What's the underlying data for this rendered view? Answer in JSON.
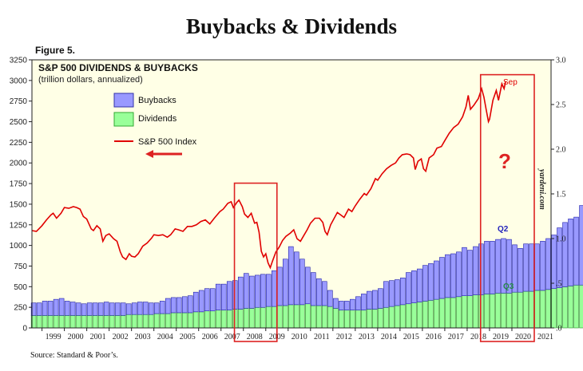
{
  "header": {
    "title": "Buybacks & Dividends",
    "figure_label": "Figure 5.",
    "source": "Source: Standard & Poor’s."
  },
  "colors": {
    "background": "#FFFFE6",
    "buybacks": "#9999FF",
    "dividends": "#99FF99",
    "index": "#E00000",
    "highlight_box": "#DD2222",
    "q2_label": "#2222BB",
    "q3_label": "#228844"
  },
  "chart_data": {
    "type": "bar",
    "title": "S&P 500 DIVIDENDS & BUYBACKS",
    "subtitle": "(trillion dollars, annualized)",
    "stacked": true,
    "x_range": [
      1998.55,
      2021.75
    ],
    "left_axis": {
      "range": [
        0,
        3250
      ],
      "ticks": [
        0,
        250,
        500,
        750,
        1000,
        1250,
        1500,
        1750,
        2000,
        2250,
        2500,
        2750,
        3000,
        3250
      ]
    },
    "right_axis": {
      "range": [
        0,
        3.0
      ],
      "ticks": [
        0,
        0.5,
        1.0,
        1.5,
        2.0,
        2.5,
        3.0
      ],
      "tick_labels": [
        ".0",
        ".5",
        "1.0",
        "1.5",
        "2.0",
        "2.5",
        "3.0"
      ]
    },
    "x_tick_labels": [
      "1999",
      "2000",
      "2001",
      "2002",
      "2003",
      "2004",
      "2005",
      "2006",
      "2007",
      "2008",
      "2009",
      "2010",
      "2011",
      "2012",
      "2013",
      "2014",
      "2015",
      "2016",
      "2017",
      "2018",
      "2019",
      "2020",
      "2021"
    ],
    "bar_start": 1998.625,
    "bar_step": 0.25,
    "series": [
      {
        "name": "Dividends",
        "axis": "right",
        "values": [
          0.14,
          0.14,
          0.14,
          0.14,
          0.14,
          0.14,
          0.14,
          0.14,
          0.14,
          0.14,
          0.14,
          0.14,
          0.14,
          0.14,
          0.14,
          0.14,
          0.14,
          0.15,
          0.15,
          0.15,
          0.15,
          0.15,
          0.16,
          0.16,
          0.16,
          0.17,
          0.17,
          0.17,
          0.17,
          0.18,
          0.18,
          0.19,
          0.19,
          0.2,
          0.2,
          0.2,
          0.21,
          0.21,
          0.22,
          0.22,
          0.23,
          0.23,
          0.24,
          0.24,
          0.25,
          0.25,
          0.26,
          0.26,
          0.26,
          0.27,
          0.25,
          0.25,
          0.25,
          0.24,
          0.22,
          0.2,
          0.2,
          0.2,
          0.2,
          0.2,
          0.21,
          0.21,
          0.22,
          0.23,
          0.24,
          0.25,
          0.26,
          0.27,
          0.28,
          0.29,
          0.3,
          0.31,
          0.32,
          0.33,
          0.34,
          0.34,
          0.35,
          0.36,
          0.36,
          0.37,
          0.37,
          0.38,
          0.38,
          0.39,
          0.39,
          0.39,
          0.4,
          0.4,
          0.41,
          0.41,
          0.42,
          0.42,
          0.43,
          0.44,
          0.45,
          0.46,
          0.47,
          0.48,
          0.48,
          0.48,
          0.49,
          0.5
        ]
      },
      {
        "name": "Buybacks",
        "axis": "right",
        "values": [
          0.14,
          0.14,
          0.16,
          0.16,
          0.18,
          0.19,
          0.16,
          0.15,
          0.14,
          0.13,
          0.14,
          0.14,
          0.14,
          0.15,
          0.14,
          0.14,
          0.14,
          0.12,
          0.13,
          0.14,
          0.14,
          0.13,
          0.12,
          0.14,
          0.17,
          0.17,
          0.17,
          0.18,
          0.19,
          0.22,
          0.24,
          0.25,
          0.25,
          0.29,
          0.29,
          0.32,
          0.32,
          0.36,
          0.39,
          0.36,
          0.36,
          0.37,
          0.36,
          0.4,
          0.43,
          0.52,
          0.65,
          0.59,
          0.51,
          0.41,
          0.37,
          0.3,
          0.27,
          0.18,
          0.11,
          0.1,
          0.1,
          0.12,
          0.15,
          0.18,
          0.2,
          0.21,
          0.22,
          0.29,
          0.29,
          0.29,
          0.3,
          0.35,
          0.36,
          0.37,
          0.4,
          0.41,
          0.43,
          0.46,
          0.48,
          0.49,
          0.5,
          0.54,
          0.51,
          0.54,
          0.57,
          0.59,
          0.59,
          0.6,
          0.61,
          0.6,
          0.53,
          0.49,
          0.53,
          0.53,
          0.52,
          0.55,
          0.57,
          0.6,
          0.67,
          0.72,
          0.75,
          0.76,
          0.89,
          0.81,
          0.64,
          0.73
        ]
      },
      {
        "name": "S&P 500 Index",
        "type": "line",
        "axis": "left",
        "points": [
          [
            1998.55,
            1180
          ],
          [
            1998.75,
            1170
          ],
          [
            1999.0,
            1240
          ],
          [
            1999.2,
            1310
          ],
          [
            1999.4,
            1370
          ],
          [
            1999.5,
            1390
          ],
          [
            1999.65,
            1330
          ],
          [
            1999.85,
            1390
          ],
          [
            2000.0,
            1460
          ],
          [
            2000.2,
            1450
          ],
          [
            2000.4,
            1470
          ],
          [
            2000.55,
            1460
          ],
          [
            2000.7,
            1440
          ],
          [
            2000.85,
            1350
          ],
          [
            2001.0,
            1320
          ],
          [
            2001.2,
            1200
          ],
          [
            2001.3,
            1180
          ],
          [
            2001.45,
            1240
          ],
          [
            2001.6,
            1200
          ],
          [
            2001.72,
            1050
          ],
          [
            2001.85,
            1120
          ],
          [
            2002.0,
            1140
          ],
          [
            2002.2,
            1080
          ],
          [
            2002.35,
            1050
          ],
          [
            2002.5,
            920
          ],
          [
            2002.6,
            860
          ],
          [
            2002.75,
            830
          ],
          [
            2002.9,
            900
          ],
          [
            2003.0,
            870
          ],
          [
            2003.15,
            860
          ],
          [
            2003.3,
            900
          ],
          [
            2003.5,
            990
          ],
          [
            2003.7,
            1030
          ],
          [
            2003.9,
            1090
          ],
          [
            2004.0,
            1130
          ],
          [
            2004.2,
            1120
          ],
          [
            2004.4,
            1130
          ],
          [
            2004.6,
            1100
          ],
          [
            2004.75,
            1130
          ],
          [
            2004.95,
            1200
          ],
          [
            2005.1,
            1190
          ],
          [
            2005.3,
            1170
          ],
          [
            2005.5,
            1230
          ],
          [
            2005.7,
            1230
          ],
          [
            2005.9,
            1250
          ],
          [
            2006.1,
            1290
          ],
          [
            2006.3,
            1310
          ],
          [
            2006.5,
            1260
          ],
          [
            2006.7,
            1330
          ],
          [
            2006.95,
            1410
          ],
          [
            2007.1,
            1440
          ],
          [
            2007.3,
            1510
          ],
          [
            2007.45,
            1530
          ],
          [
            2007.55,
            1460
          ],
          [
            2007.7,
            1520
          ],
          [
            2007.8,
            1550
          ],
          [
            2007.95,
            1470
          ],
          [
            2008.05,
            1380
          ],
          [
            2008.2,
            1340
          ],
          [
            2008.35,
            1390
          ],
          [
            2008.5,
            1270
          ],
          [
            2008.6,
            1280
          ],
          [
            2008.7,
            1160
          ],
          [
            2008.8,
            930
          ],
          [
            2008.9,
            860
          ],
          [
            2009.0,
            900
          ],
          [
            2009.1,
            790
          ],
          [
            2009.2,
            730
          ],
          [
            2009.3,
            810
          ],
          [
            2009.45,
            920
          ],
          [
            2009.6,
            980
          ],
          [
            2009.75,
            1060
          ],
          [
            2009.9,
            1110
          ],
          [
            2010.1,
            1150
          ],
          [
            2010.25,
            1190
          ],
          [
            2010.4,
            1080
          ],
          [
            2010.55,
            1050
          ],
          [
            2010.7,
            1120
          ],
          [
            2010.85,
            1190
          ],
          [
            2011.0,
            1270
          ],
          [
            2011.2,
            1330
          ],
          [
            2011.4,
            1330
          ],
          [
            2011.55,
            1280
          ],
          [
            2011.65,
            1170
          ],
          [
            2011.75,
            1130
          ],
          [
            2011.9,
            1250
          ],
          [
            2012.0,
            1300
          ],
          [
            2012.2,
            1400
          ],
          [
            2012.35,
            1370
          ],
          [
            2012.5,
            1340
          ],
          [
            2012.7,
            1440
          ],
          [
            2012.85,
            1410
          ],
          [
            2013.0,
            1480
          ],
          [
            2013.2,
            1560
          ],
          [
            2013.4,
            1630
          ],
          [
            2013.5,
            1610
          ],
          [
            2013.7,
            1690
          ],
          [
            2013.9,
            1810
          ],
          [
            2014.0,
            1790
          ],
          [
            2014.2,
            1870
          ],
          [
            2014.4,
            1930
          ],
          [
            2014.6,
            1970
          ],
          [
            2014.8,
            2000
          ],
          [
            2014.95,
            2060
          ],
          [
            2015.1,
            2100
          ],
          [
            2015.3,
            2110
          ],
          [
            2015.45,
            2100
          ],
          [
            2015.6,
            2060
          ],
          [
            2015.68,
            1920
          ],
          [
            2015.8,
            2020
          ],
          [
            2015.95,
            2050
          ],
          [
            2016.05,
            1930
          ],
          [
            2016.15,
            1900
          ],
          [
            2016.3,
            2060
          ],
          [
            2016.5,
            2100
          ],
          [
            2016.65,
            2180
          ],
          [
            2016.85,
            2200
          ],
          [
            2017.0,
            2270
          ],
          [
            2017.2,
            2360
          ],
          [
            2017.4,
            2430
          ],
          [
            2017.6,
            2470
          ],
          [
            2017.8,
            2560
          ],
          [
            2017.95,
            2680
          ],
          [
            2018.05,
            2820
          ],
          [
            2018.15,
            2650
          ],
          [
            2018.3,
            2700
          ],
          [
            2018.5,
            2780
          ],
          [
            2018.65,
            2900
          ],
          [
            2018.75,
            2800
          ],
          [
            2018.85,
            2650
          ],
          [
            2018.95,
            2500
          ],
          [
            2019.0,
            2530
          ],
          [
            2019.15,
            2760
          ],
          [
            2019.3,
            2880
          ],
          [
            2019.4,
            2760
          ],
          [
            2019.55,
            2960
          ],
          [
            2019.65,
            2900
          ],
          [
            2019.72,
            2990
          ]
        ]
      }
    ],
    "legend": {
      "position": "top-left",
      "items": [
        "Buybacks",
        "Dividends",
        "S&P 500 Index"
      ]
    },
    "annotations": {
      "sep": "Sep",
      "q2": "Q2",
      "q3": "Q3",
      "question": "?",
      "watermark": "yardeni.com"
    },
    "highlight_ranges": [
      [
        2007.6,
        2009.5
      ],
      [
        2018.6,
        2021.0
      ]
    ]
  }
}
